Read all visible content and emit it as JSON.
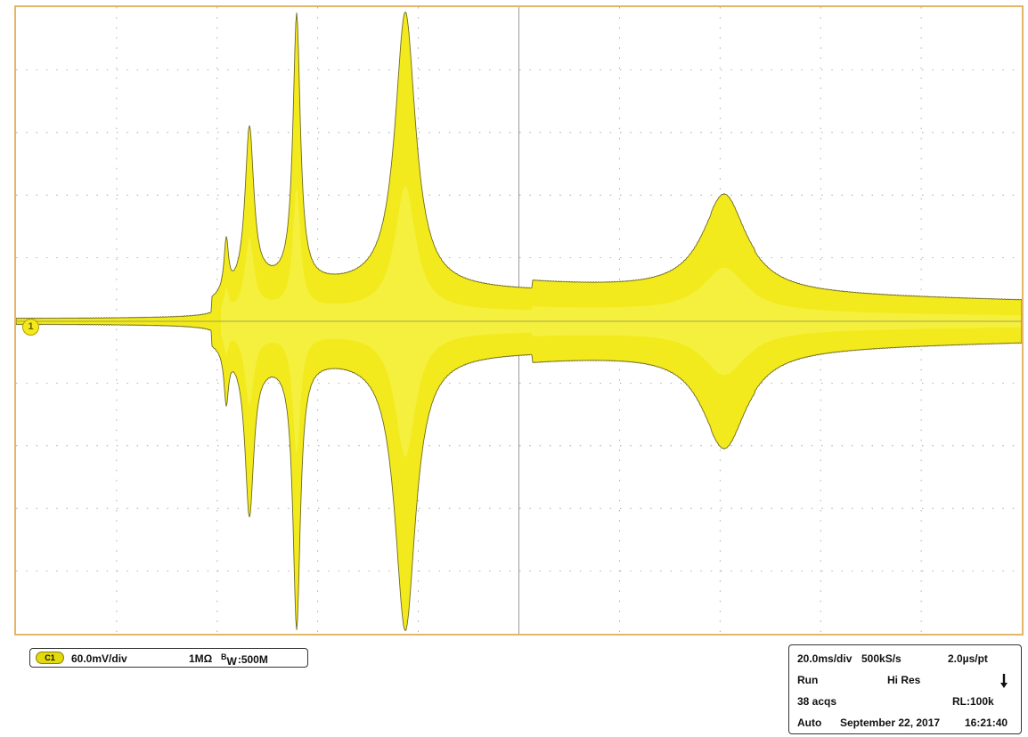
{
  "display": {
    "colors": {
      "trace": "#f2ea1c",
      "trace_edge": "#6f6a20",
      "grid": "#9a9a9a",
      "frame": "#e5b56a"
    },
    "grid": {
      "h_divisions": 10,
      "v_divisions": 10
    }
  },
  "channel": {
    "marker": "1",
    "badge": "C1",
    "scale": "60.0mV/div",
    "impedance": "1MΩ",
    "bandwidth_prefix": "B",
    "bandwidth_sub": "W",
    "bandwidth_value": ":500M"
  },
  "acquisition": {
    "timebase": "20.0ms/div",
    "sample_rate": "500kS/s",
    "resolution": "2.0µs/pt",
    "state": "Run",
    "mode": "Hi Res",
    "trigger_icon": "trigger-falling-edge-icon",
    "acq_count": "38 acqs",
    "record_length": "RL:100k",
    "trigger_mode": "Auto",
    "date": "September 22, 2017",
    "time": "16:21:40"
  }
}
